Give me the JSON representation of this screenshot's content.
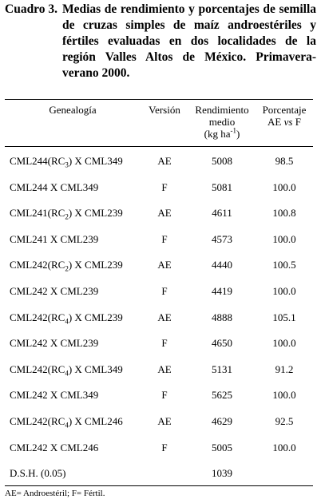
{
  "caption": {
    "label": "Cuadro 3.",
    "text": "Medias de rendimiento y porcentajes de semilla de cruzas simples de maíz androestériles y fértiles evaluadas en dos localidades de la región Valles Altos de México. Primavera-verano 2000."
  },
  "header": {
    "genealogia": "Genealogía",
    "version": "Versión",
    "rendimiento_line1": "Rendimiento",
    "rendimiento_line2": "medio",
    "rendimiento_unit_pre": "(kg ha",
    "rendimiento_unit_sup": "-1",
    "rendimiento_unit_post": ")",
    "porcentaje_line1": "Porcentaje",
    "porcentaje_line2_a": "AE ",
    "porcentaje_line2_vs": "vs",
    "porcentaje_line2_b": " F"
  },
  "rows": [
    {
      "gen_a": "CML244(RC",
      "gen_sub": "3",
      "gen_b": ") X CML349",
      "version": "AE",
      "rendimiento": "5008",
      "porcentaje": "98.5"
    },
    {
      "gen_a": "CML244 X CML349",
      "gen_sub": "",
      "gen_b": "",
      "version": "F",
      "rendimiento": "5081",
      "porcentaje": "100.0"
    },
    {
      "gen_a": "CML241(RC",
      "gen_sub": "2",
      "gen_b": ") X CML239",
      "version": "AE",
      "rendimiento": "4611",
      "porcentaje": "100.8"
    },
    {
      "gen_a": "CML241 X CML239",
      "gen_sub": "",
      "gen_b": "",
      "version": "F",
      "rendimiento": "4573",
      "porcentaje": "100.0"
    },
    {
      "gen_a": "CML242(RC",
      "gen_sub": "2",
      "gen_b": ") X CML239",
      "version": "AE",
      "rendimiento": "4440",
      "porcentaje": "100.5"
    },
    {
      "gen_a": "CML242 X CML239",
      "gen_sub": "",
      "gen_b": "",
      "version": "F",
      "rendimiento": "4419",
      "porcentaje": "100.0"
    },
    {
      "gen_a": "CML242(RC",
      "gen_sub": "4",
      "gen_b": ") X CML239",
      "version": "AE",
      "rendimiento": "4888",
      "porcentaje": "105.1"
    },
    {
      "gen_a": "CML242 X CML239",
      "gen_sub": "",
      "gen_b": "",
      "version": "F",
      "rendimiento": "4650",
      "porcentaje": "100.0"
    },
    {
      "gen_a": "CML242(RC",
      "gen_sub": "4",
      "gen_b": ") X CML349",
      "version": "AE",
      "rendimiento": "5131",
      "porcentaje": "91.2"
    },
    {
      "gen_a": "CML242 X CML349",
      "gen_sub": "",
      "gen_b": "",
      "version": "F",
      "rendimiento": "5625",
      "porcentaje": "100.0"
    },
    {
      "gen_a": "CML242(RC",
      "gen_sub": "4",
      "gen_b": ") X CML246",
      "version": "AE",
      "rendimiento": "4629",
      "porcentaje": "92.5"
    },
    {
      "gen_a": "CML242 X CML246",
      "gen_sub": "",
      "gen_b": "",
      "version": "F",
      "rendimiento": "5005",
      "porcentaje": "100.0"
    },
    {
      "gen_a": "D.S.H. (0.05)",
      "gen_sub": "",
      "gen_b": "",
      "version": "",
      "rendimiento": "1039",
      "porcentaje": ""
    }
  ],
  "footnote": "AE= Androestéril; F= Fértil."
}
